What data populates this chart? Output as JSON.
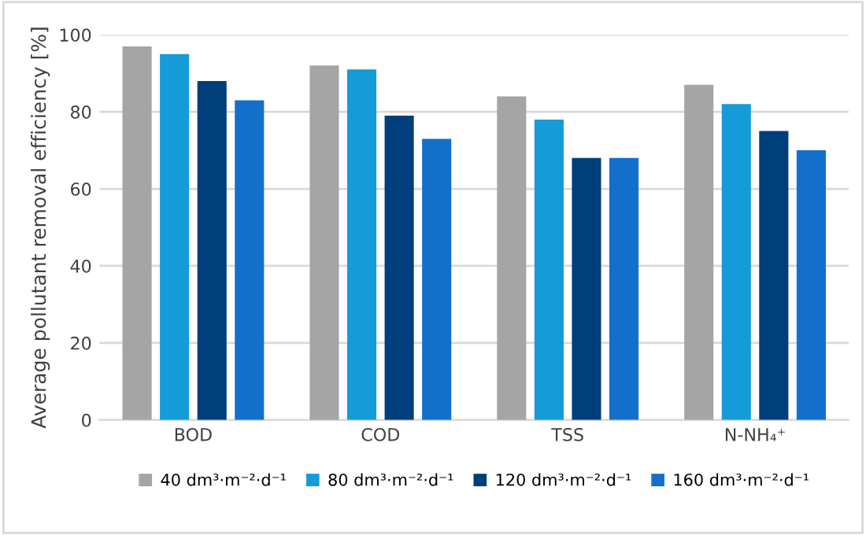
{
  "chart_data": {
    "type": "bar",
    "ylabel": "Average pollutant removal efficiency [%]",
    "categories": [
      "BOD",
      "COD",
      "TSS",
      "N-NH₄⁺"
    ],
    "series": [
      {
        "name": "40 dm³·m⁻²·d⁻¹",
        "color": "#a5a5a5",
        "values": [
          97,
          92,
          84,
          87
        ]
      },
      {
        "name": "80 dm³·m⁻²·d⁻¹",
        "color": "#159bd7",
        "values": [
          95,
          91,
          78,
          82
        ]
      },
      {
        "name": "120 dm³·m⁻²·d⁻¹",
        "color": "#003f7b",
        "values": [
          88,
          79,
          68,
          75
        ]
      },
      {
        "name": "160 dm³·m⁻²·d⁻¹",
        "color": "#1270cb",
        "values": [
          83,
          73,
          68,
          70
        ]
      }
    ],
    "ylim": [
      0,
      100
    ],
    "yticks": [
      0,
      20,
      40,
      60,
      80,
      100
    ],
    "grid": "y",
    "legend": "bottom"
  }
}
